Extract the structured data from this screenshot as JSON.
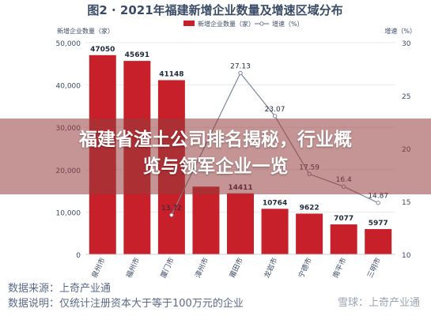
{
  "chart_data": {
    "type": "bar",
    "title": "图2 · 2021年福建新增企业数量及增速区域分布",
    "legend": {
      "bar_label": "新增企业数量（家）",
      "line_label": "增速（%）",
      "placement": "top-center"
    },
    "y_left_label": "新增企业数量（家）",
    "y_right_label": "增速（%）",
    "y_left_range": [
      0,
      50000
    ],
    "y_right_range": [
      10,
      30
    ],
    "y_left_ticks": [
      "0",
      "10,000",
      "20,000",
      "30,000",
      "40,000",
      "50,000"
    ],
    "y_right_ticks": [
      "10",
      "15",
      "20",
      "25",
      "30"
    ],
    "categories": [
      "泉州市",
      "福州市",
      "厦门市",
      "漳州市",
      "莆田市",
      "龙岩市",
      "宁德市",
      "南平市",
      "三明市"
    ],
    "bar_series": {
      "name": "新增企业数量",
      "values": [
        47050,
        45691,
        41148,
        16000,
        14411,
        10764,
        9622,
        7077,
        5977
      ],
      "labels": [
        "47050",
        "45691",
        "41148",
        "",
        "14411",
        "10764",
        "9622",
        "7077",
        "5977"
      ],
      "color": "#c8202a"
    },
    "line_series": {
      "name": "增速",
      "values": [
        null,
        null,
        13.72,
        null,
        27.13,
        23.07,
        17.59,
        16.4,
        14.87
      ],
      "labels": [
        "",
        "",
        "13.72",
        "",
        "27.13",
        "23.07",
        "17.59",
        "16.4",
        "14.87"
      ],
      "color": "#7a869a"
    }
  },
  "overlay": {
    "line1": "福建省渣土公司排名揭秘，行业概",
    "line2": "览与领军企业一览"
  },
  "notes": {
    "source": "数据来源：上奇产业通",
    "explanation": "数据说明：仅统计注册资本大于等于100万元的企业"
  },
  "watermark": "雪球：上奇产业通"
}
